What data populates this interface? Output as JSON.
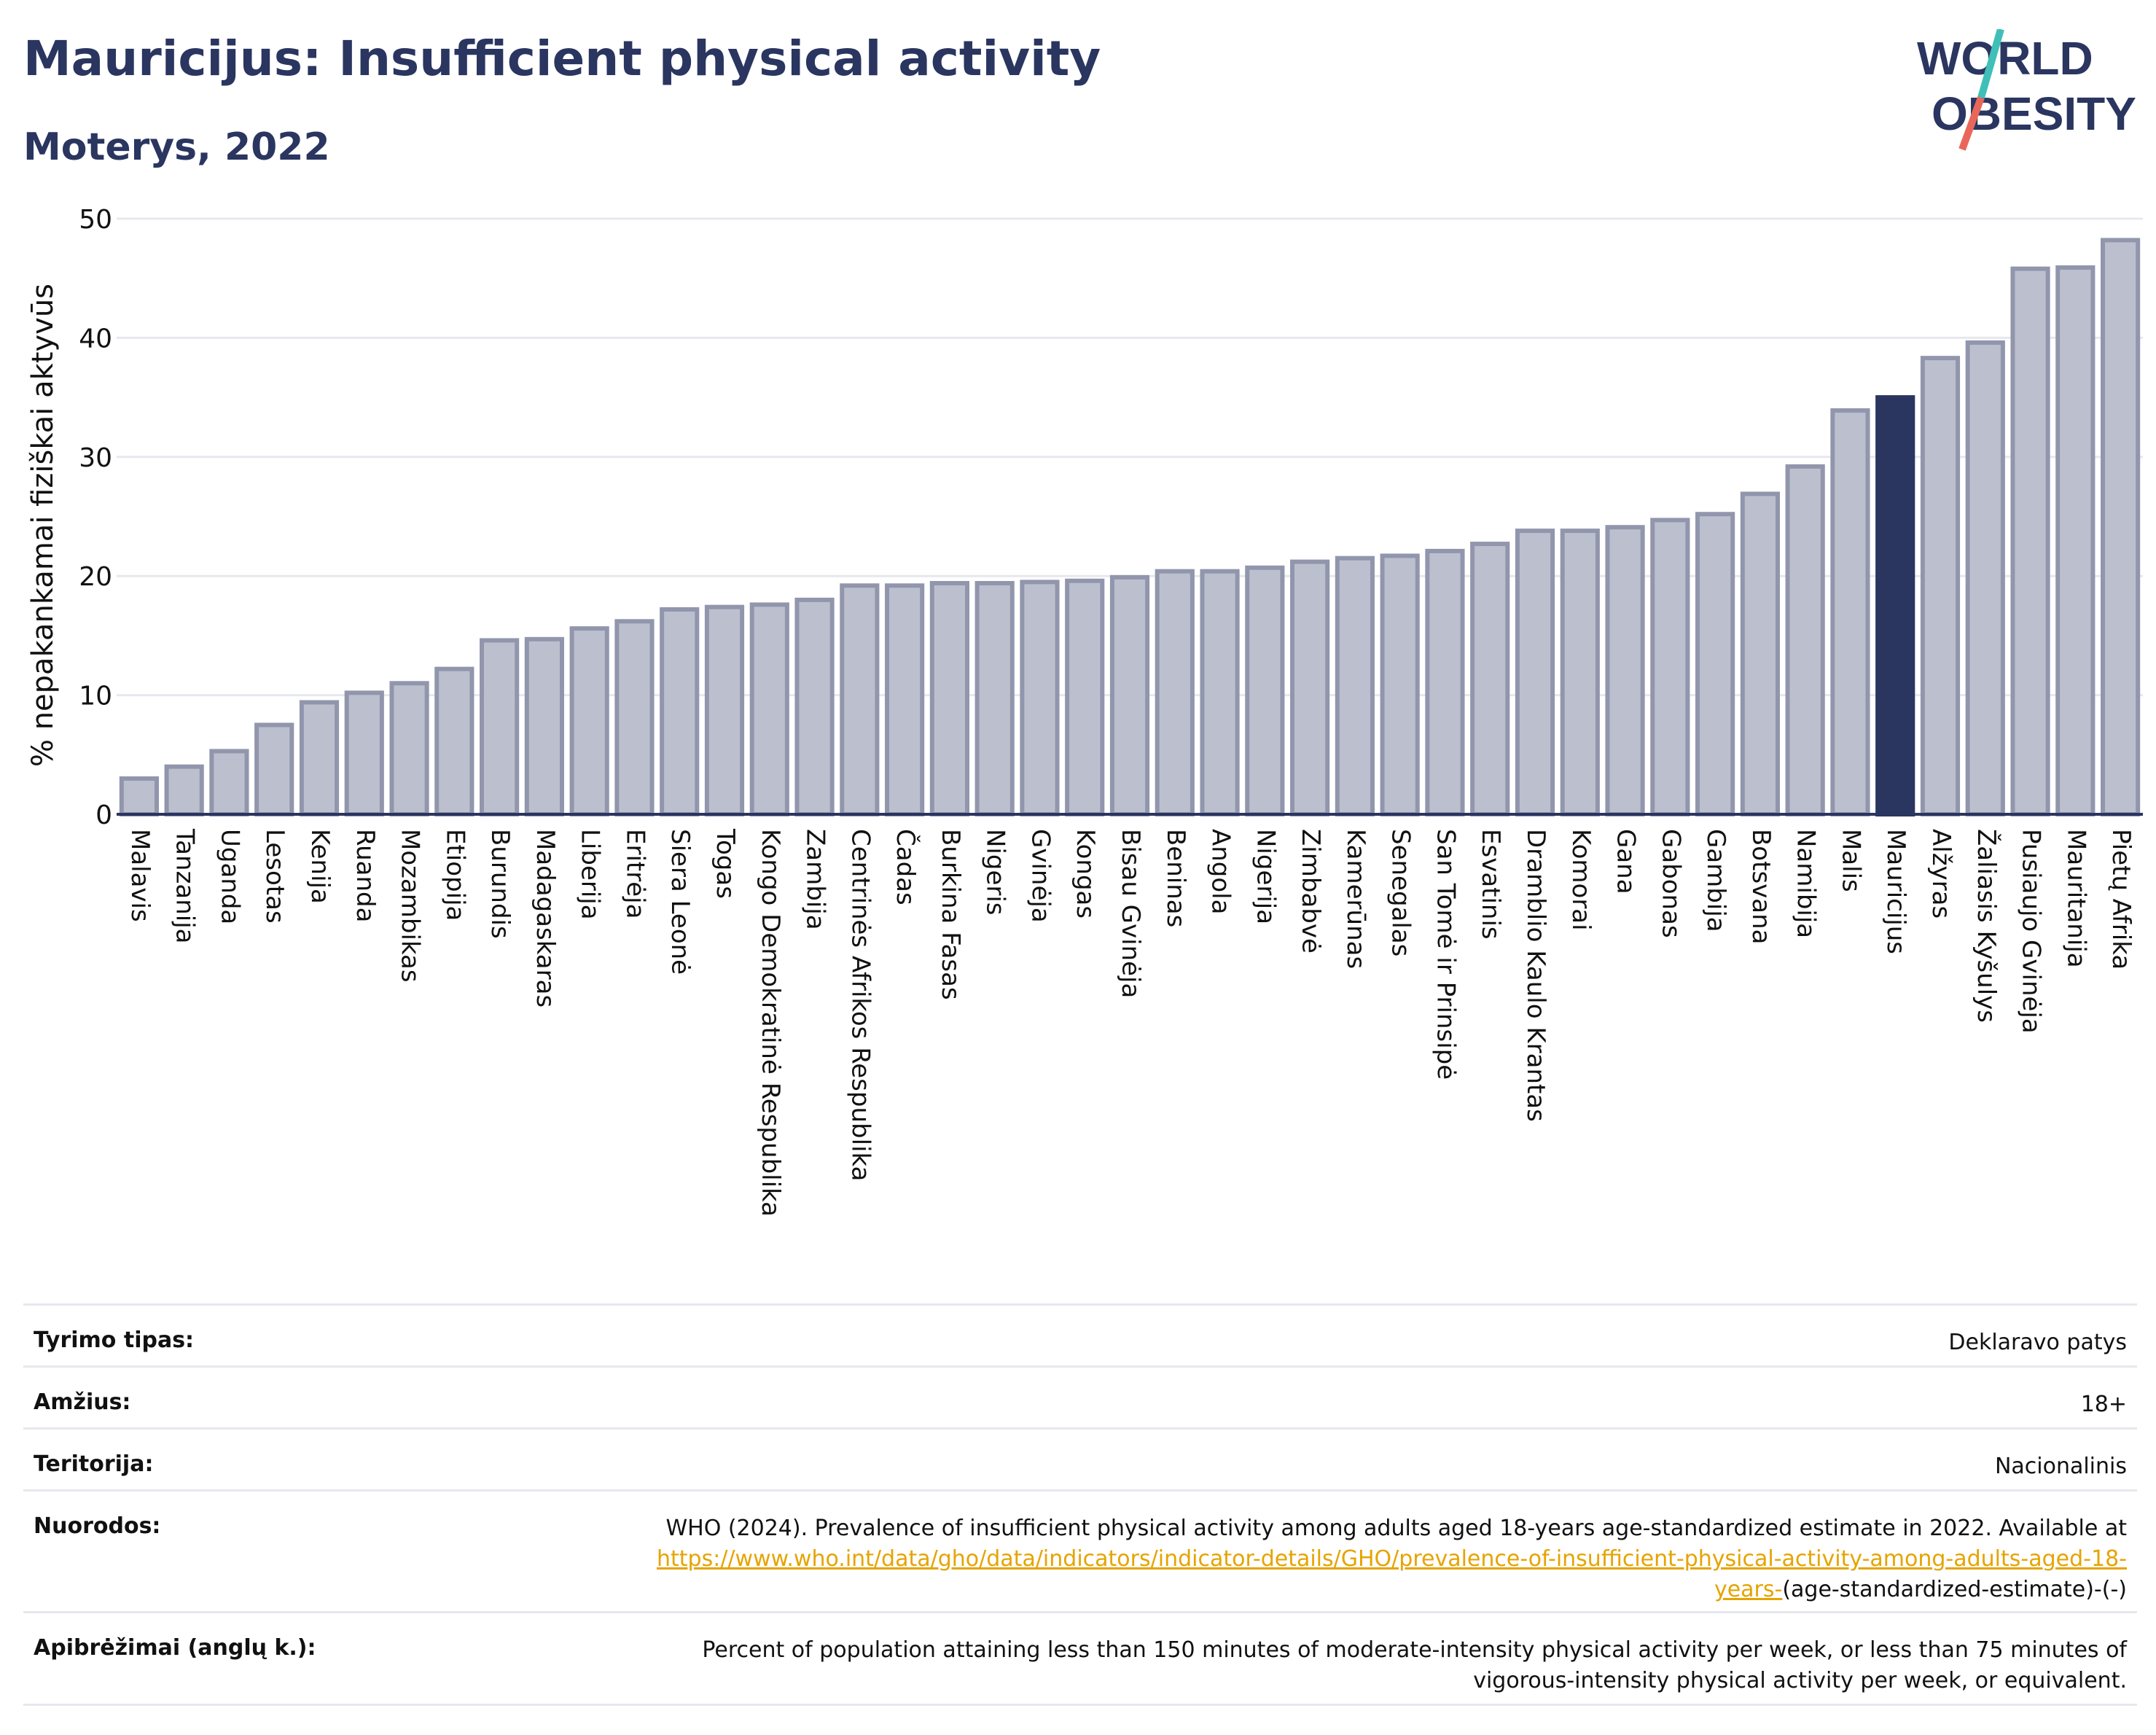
{
  "header": {
    "title": "Mauricijus: Insufficient physical activity",
    "subtitle": "Moterys, 2022",
    "logo_text_line1": "WORLD",
    "logo_text_line2": "OBESITY"
  },
  "colors": {
    "bar": "#bcc0ce",
    "bar_border": "#9196ad",
    "highlight": "#2a3560",
    "axis": "#2a3560",
    "grid": "#e6e8ee",
    "link": "#e5a400",
    "logo_slash_teal": "#3fbfb8",
    "logo_slash_red": "#e8675a"
  },
  "chart_data": {
    "type": "bar",
    "ylabel": "% nepakankamai fiziškai aktyvūs",
    "ylim": [
      0,
      50
    ],
    "yticks": [
      0,
      10,
      20,
      30,
      40,
      50
    ],
    "grid": true,
    "highlight_category": "Mauricijus",
    "categories": [
      "Malavis",
      "Tanzanija",
      "Uganda",
      "Lesotas",
      "Kenija",
      "Ruanda",
      "Mozambikas",
      "Etiopija",
      "Burundis",
      "Madagaskaras",
      "Liberija",
      "Eritrėja",
      "Siera Leonė",
      "Togas",
      "Kongo Demokratinė Respublika",
      "Zambija",
      "Centrinės Afrikos Respublika",
      "Čadas",
      "Burkina Fasas",
      "Nigeris",
      "Gvinėja",
      "Kongas",
      "Bisau Gvinėja",
      "Beninas",
      "Angola",
      "Nigerija",
      "Zimbabvė",
      "Kamerūnas",
      "Senegalas",
      "San Tomė ir Prinsipė",
      "Esvatinis",
      "Dramblio Kaulo Krantas",
      "Komorai",
      "Gana",
      "Gabonas",
      "Gambija",
      "Botsvana",
      "Namibija",
      "Malis",
      "Mauricijus",
      "Alžyras",
      "Žaliasis Kyšulys",
      "Pusiaujo Gvinėja",
      "Mauritanija",
      "Pietų Afrika"
    ],
    "values": [
      3.0,
      4.0,
      5.3,
      7.5,
      9.4,
      10.2,
      11.0,
      12.2,
      14.6,
      14.7,
      15.6,
      16.2,
      17.2,
      17.4,
      17.6,
      18.0,
      19.2,
      19.2,
      19.4,
      19.4,
      19.5,
      19.6,
      19.9,
      20.4,
      20.4,
      20.7,
      21.2,
      21.5,
      21.7,
      22.1,
      22.7,
      23.8,
      23.8,
      24.1,
      24.7,
      25.2,
      26.9,
      29.2,
      33.9,
      35.0,
      38.3,
      39.6,
      45.8,
      45.9,
      48.2
    ]
  },
  "meta": [
    {
      "label": "Tyrimo tipas:",
      "value": "Deklaravo patys"
    },
    {
      "label": "Amžius:",
      "value": "18+"
    },
    {
      "label": "Teritorija:",
      "value": "Nacionalinis"
    },
    {
      "label": "Nuorodos:",
      "value_before": "WHO (2024). Prevalence of insufficient physical activity among adults aged 18-years age-standardized estimate in 2022. Available at",
      "link": "https://www.who.int/data/gho/data/indicators/indicator-details/GHO/prevalence-of-insufficient-physical-activity-among-adults-aged-18-years-",
      "value_after": "(age-standardized-estimate)-(-)"
    },
    {
      "label": "Apibrėžimai (anglų k.):",
      "value": "Percent of population attaining less than 150 minutes of moderate-intensity physical activity per week, or less than 75 minutes of vigorous-intensity physical activity per week, or equivalent."
    }
  ]
}
